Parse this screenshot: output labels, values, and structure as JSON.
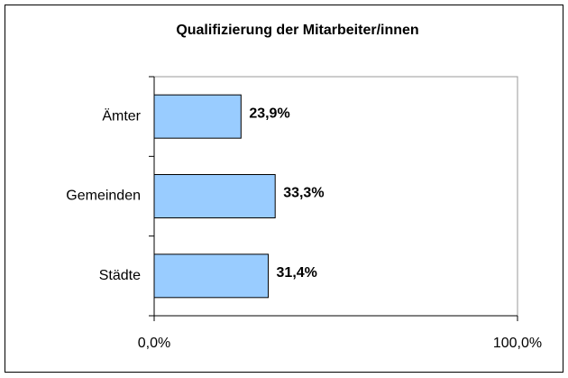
{
  "chart_data": {
    "type": "bar",
    "orientation": "horizontal",
    "title": "Qualifizierung der Mitarbeiter/innen",
    "categories": [
      "Ämter",
      "Gemeinden",
      "Städte"
    ],
    "values": [
      23.9,
      33.3,
      31.4
    ],
    "value_labels": [
      "23,9%",
      "33,3%",
      "31,4%"
    ],
    "color": "#99ccff",
    "xlim": [
      0,
      100
    ],
    "xticks": [
      {
        "value": 0,
        "label": "0,0%"
      },
      {
        "value": 100,
        "label": "100,0%"
      }
    ]
  }
}
